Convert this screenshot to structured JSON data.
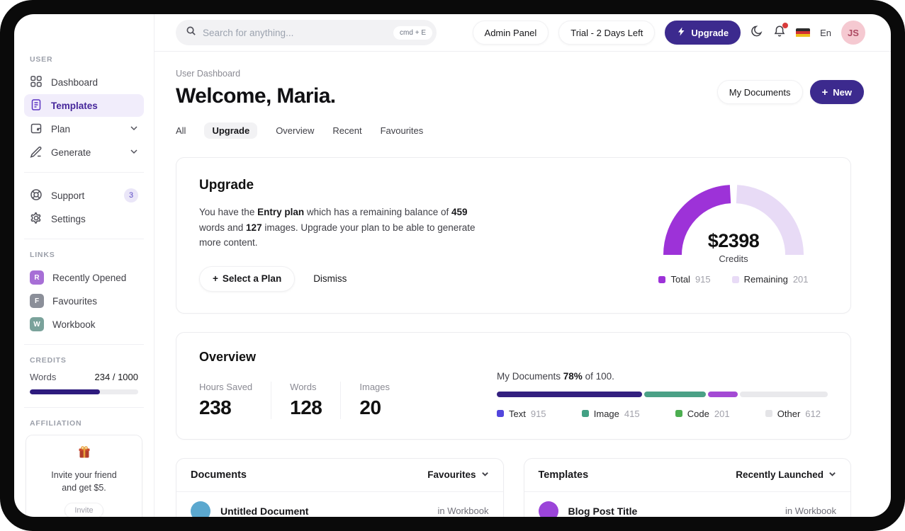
{
  "topbar": {
    "search": {
      "placeholder": "Search for anything...",
      "shortcut": "cmd  +  E"
    },
    "admin_panel_label": "Admin Panel",
    "trial_label": "Trial - 2 Days Left",
    "upgrade_label": "Upgrade",
    "language_label": "En",
    "avatar_initials": "JS",
    "notification_color": "#d93b3b"
  },
  "sidebar": {
    "section_user": "USER",
    "section_links": "LINKS",
    "section_credits": "CREDITS",
    "section_affiliation": "AFFILIATION",
    "nav": [
      {
        "label": "Dashboard",
        "active": false
      },
      {
        "label": "Templates",
        "active": true
      },
      {
        "label": "Plan",
        "expandable": true
      },
      {
        "label": "Generate",
        "expandable": true
      }
    ],
    "secondary": [
      {
        "label": "Support",
        "badge": "3"
      },
      {
        "label": "Settings"
      }
    ],
    "links": [
      {
        "initial": "R",
        "label": "Recently Opened",
        "color": "#a76fd6"
      },
      {
        "initial": "F",
        "label": "Favourites",
        "color": "#8b8f99"
      },
      {
        "initial": "W",
        "label": "Workbook",
        "color": "#7aa29b"
      }
    ],
    "credits": {
      "label": "Words",
      "value": "234 / 1000",
      "percent": 65,
      "bar_color": "#2e1b7e"
    },
    "affiliation": {
      "icon": "gift-icon",
      "line1": "Invite your friend",
      "line2": "and get $5.",
      "button": "Invite"
    }
  },
  "header": {
    "breadcrumb": "User Dashboard",
    "title": "Welcome, Maria.",
    "my_documents_label": "My Documents",
    "new_plus": "+",
    "new_label": "New"
  },
  "tabs": {
    "items": [
      "All",
      "Upgrade",
      "Overview",
      "Recent",
      "Favourites"
    ],
    "active": "Upgrade"
  },
  "upgrade_card": {
    "title": "Upgrade",
    "text_1": "You have the ",
    "text_plan": "Entry plan",
    "text_2": " which has a remaining balance of ",
    "text_words": "459",
    "text_3": " words and ",
    "text_images": "127",
    "text_4": " images. Upgrade your plan to be able to generate more content.",
    "select_plan_plus": "+",
    "select_plan_label": "Select a Plan",
    "dismiss_label": "Dismiss"
  },
  "chart_data": [
    {
      "type": "pie",
      "subtype": "half-donut-gauge",
      "center_value": "$2398",
      "center_label": "Credits",
      "legend_position": "bottom",
      "series": [
        {
          "name": "Total",
          "value": 915,
          "color": "#9d32d8"
        },
        {
          "name": "Remaining",
          "value": 201,
          "color": "#e8dbf6"
        }
      ]
    },
    {
      "type": "bar",
      "subtype": "stacked-progress",
      "title_prefix": "My Documents ",
      "title_bold": "78%",
      "title_suffix": " of 100.",
      "max": 100,
      "track_color": "#e9e9ec",
      "series": [
        {
          "name": "Text",
          "value": 915,
          "color": "#5246dd",
          "bar_color": "#33207f",
          "width_pct": 44
        },
        {
          "name": "Image",
          "value": 415,
          "color": "#43a184",
          "bar_color": "#4ba186",
          "width_pct": 18.5
        },
        {
          "name": "Code",
          "value": 201,
          "color": "#4cae50",
          "bar_color": "#a44ad4",
          "width_pct": 9
        },
        {
          "name": "Other",
          "value": 612,
          "color": "#e4e4e7",
          "bar_color": "#e9e9ec",
          "width_pct": 0
        }
      ]
    }
  ],
  "overview_card": {
    "title": "Overview",
    "stats": [
      {
        "label": "Hours Saved",
        "value": "238"
      },
      {
        "label": "Words",
        "value": "128"
      },
      {
        "label": "Images",
        "value": "20"
      }
    ]
  },
  "documents_card": {
    "title": "Documents",
    "filter": "Favourites",
    "row": {
      "name": "Untitled Document",
      "location": "in Workbook",
      "avatar_color": "#5ba8cf"
    }
  },
  "templates_card": {
    "title": "Templates",
    "filter": "Recently Launched",
    "row": {
      "name": "Blog Post Title",
      "location": "in Workbook",
      "avatar_color": "#9b45d9"
    }
  }
}
